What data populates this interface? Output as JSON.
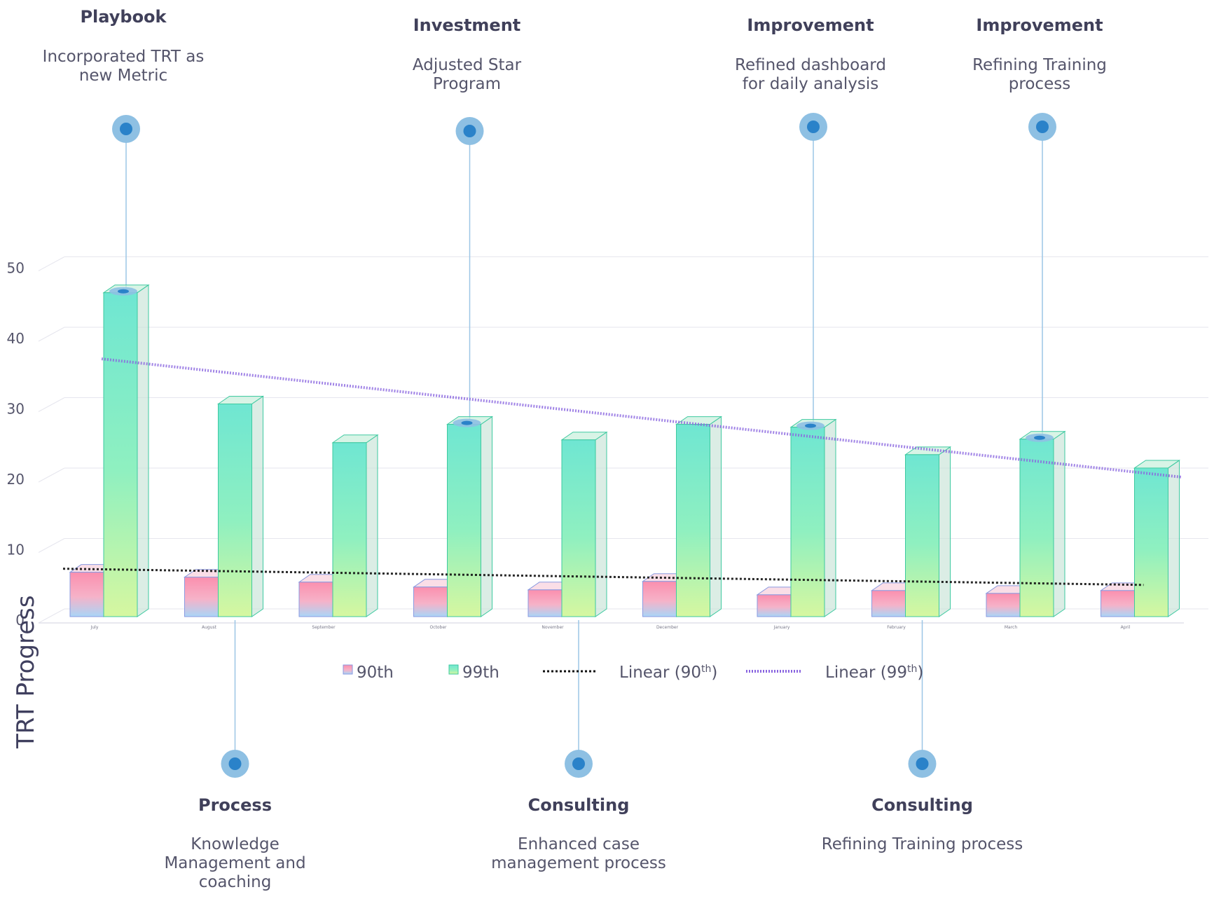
{
  "chart_data": {
    "type": "bar",
    "title": "",
    "xlabel": "",
    "ylabel": "TRT Progress",
    "ylim": [
      0,
      50
    ],
    "yticks": [
      0,
      10,
      20,
      30,
      40,
      50
    ],
    "grid": true,
    "legend_position": "bottom",
    "categories": [
      "July",
      "August",
      "September",
      "October",
      "November",
      "December",
      "January",
      "February",
      "March",
      "April"
    ],
    "series": [
      {
        "name": "90th",
        "values": [
          6.3,
          5.6,
          4.9,
          4.2,
          3.8,
          5.0,
          3.1,
          3.7,
          3.3,
          3.7
        ],
        "color": "#f59ab5"
      },
      {
        "name": "99th",
        "values": [
          46.0,
          30.2,
          24.7,
          27.3,
          25.1,
          27.3,
          26.9,
          23.0,
          25.2,
          21.1
        ],
        "color": "#7fe9cc"
      }
    ],
    "trendlines": [
      {
        "name": "Linear (90th)",
        "of": "90th",
        "start": 6.8,
        "end": 4.5,
        "color": "#111111"
      },
      {
        "name": "Linear (99th)",
        "of": "99th",
        "start": 36.6,
        "end": 19.8,
        "color": "#8a66e0"
      }
    ],
    "legend": [
      {
        "label": "90th",
        "kind": "box"
      },
      {
        "label": "99th",
        "kind": "box"
      },
      {
        "label": "Linear (90",
        "sup": "th",
        "tail": ")",
        "kind": "line90"
      },
      {
        "label": "Linear (99",
        "sup": "th",
        "tail": ")",
        "kind": "line99"
      }
    ],
    "annotations": [
      {
        "title": "Playbook",
        "lines": [
          "Incorporated TRT as",
          "new Metric"
        ],
        "category": "July",
        "position": "top"
      },
      {
        "title": "Investment",
        "lines": [
          "Adjusted Star",
          "Program"
        ],
        "category": "October",
        "position": "top"
      },
      {
        "title": "Improvement",
        "lines": [
          "Refined dashboard",
          "for daily analysis"
        ],
        "category": "January",
        "position": "top"
      },
      {
        "title": "Improvement",
        "lines": [
          "Refining Training",
          "process"
        ],
        "category": "March",
        "position": "top"
      },
      {
        "title": "Process",
        "lines": [
          "Knowledge",
          "Management and",
          "coaching"
        ],
        "category": "August",
        "position": "bottom"
      },
      {
        "title": "Consulting",
        "lines": [
          "Enhanced case",
          "management process"
        ],
        "category": "November",
        "position": "bottom"
      },
      {
        "title": "Consulting",
        "lines": [
          "Refining Training process"
        ],
        "category": "February",
        "position": "bottom"
      }
    ],
    "colors": {
      "grid": "#e6e6ee",
      "marker": "#2a82c9",
      "marker_halo": "#8ec0e3",
      "leader": "#9cc6e6"
    }
  }
}
